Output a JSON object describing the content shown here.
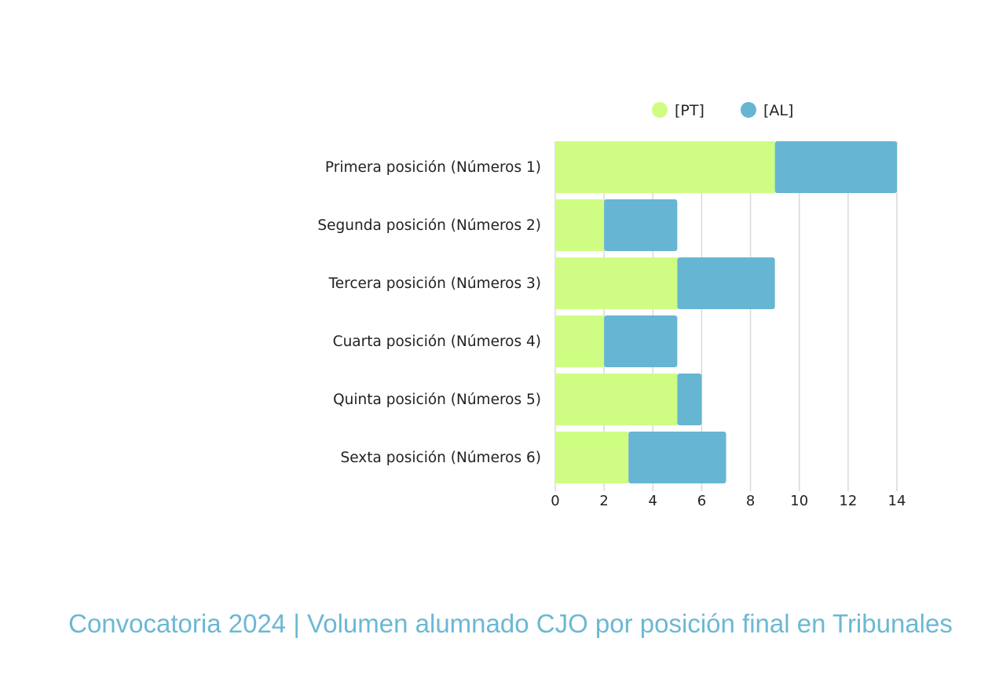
{
  "chart_data": {
    "type": "bar",
    "orientation": "horizontal",
    "stacked": true,
    "categories": [
      "Primera posición (Números 1)",
      "Segunda posición (Números 2)",
      "Tercera posición (Números 3)",
      "Cuarta posición (Números 4)",
      "Quinta posición (Números 5)",
      "Sexta posición (Números 6)"
    ],
    "series": [
      {
        "name": "[PT]",
        "color": "#cffd83",
        "values": [
          9,
          2,
          5,
          2,
          5,
          3
        ]
      },
      {
        "name": "[AL]",
        "color": "#66b5d3",
        "values": [
          5,
          3,
          4,
          3,
          1,
          4
        ]
      }
    ],
    "xlim": [
      0,
      14
    ],
    "xticks": [
      "0",
      "2",
      "4",
      "6",
      "8",
      "10",
      "12",
      "14"
    ],
    "grid": true,
    "legend": "top"
  },
  "caption": "Convocatoria 2024 | Volumen alumnado CJO por posición final en Tribunales"
}
